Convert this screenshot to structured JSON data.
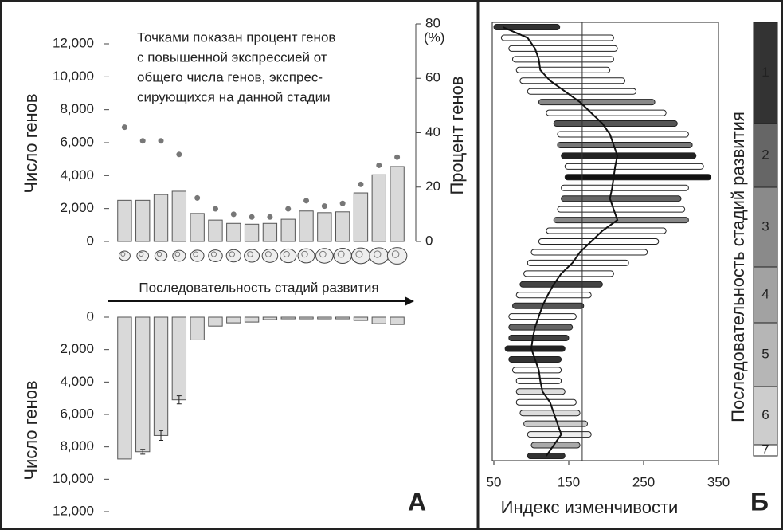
{
  "chart_data": [
    {
      "type": "bar_dot",
      "annotation": [
        "Точками показан процент генов",
        "с повышенной экспрессией от",
        "общего числа генов, экспрес-",
        "сирующихся на данной стадии"
      ],
      "ylabel": "Число генов",
      "y2label": "Процент генов",
      "y2unit": "(%)",
      "xlabel": "Последовательность стадий развития",
      "categories": [
        null,
        null,
        null,
        null,
        null,
        null,
        null,
        null,
        null,
        null,
        null,
        null,
        null,
        null,
        null,
        null
      ],
      "ylim": [
        0,
        12000
      ],
      "yticks": [
        0,
        {
          "value": 2000,
          "label": "2,000"
        },
        {
          "value": 4000,
          "label": "4,000"
        },
        {
          "value": 6000,
          "label": "6,000"
        },
        {
          "value": 8000,
          "label": "8,000"
        },
        {
          "value": 10000,
          "label": "10,000"
        },
        {
          "value": 12000,
          "label": "12,000"
        }
      ],
      "y2lim": [
        0,
        80
      ],
      "y2ticks": [
        0,
        20,
        40,
        60,
        80
      ],
      "series": [
        {
          "color": "#d9d9d9",
          "values": [
            2500,
            2500,
            2850,
            3050,
            1700,
            1300,
            1100,
            1050,
            1100,
            1350,
            1850,
            1750,
            1800,
            2950,
            4050,
            4550
          ]
        },
        {
          "color": "#777777",
          "axis": "y2",
          "values": [
            42,
            37,
            37,
            32,
            16,
            12,
            10,
            9,
            9,
            12,
            15,
            13,
            14,
            21,
            28,
            31
          ]
        }
      ]
    },
    {
      "type": "bar_down",
      "ylabel": "Число генов",
      "panel_label": "А",
      "y_inverted": true,
      "categories": [
        null,
        null,
        null,
        null,
        null,
        null,
        null,
        null,
        null,
        null,
        null,
        null,
        null,
        null,
        null,
        null
      ],
      "ylim": [
        0,
        12000
      ],
      "yticks": [
        0,
        {
          "value": 2000,
          "label": "2,000"
        },
        {
          "value": 4000,
          "label": "4,000"
        },
        {
          "value": 6000,
          "label": "6,000"
        },
        {
          "value": 8000,
          "label": "8,000"
        },
        {
          "value": 10000,
          "label": "10,000"
        },
        {
          "value": 12000,
          "label": "12,000"
        }
      ],
      "color": "#d9d9d9",
      "values": [
        8750,
        8300,
        7300,
        5100,
        1400,
        550,
        350,
        300,
        150,
        100,
        100,
        100,
        100,
        200,
        400,
        450
      ],
      "errors": [
        null,
        150,
        300,
        250,
        null,
        null,
        null,
        null,
        null,
        null,
        null,
        null,
        null,
        null,
        null,
        null
      ]
    },
    {
      "type": "range",
      "xlabel": "Индекс изменчивости",
      "ylabel": "Последовательность стадий развития",
      "panel_label": "Б",
      "xlim": [
        50,
        350
      ],
      "xticks": [
        50,
        150,
        250,
        350
      ],
      "reference_line": 168,
      "lows": [
        50,
        60,
        70,
        75,
        80,
        85,
        95,
        110,
        120,
        130,
        135,
        135,
        140,
        145,
        145,
        140,
        140,
        135,
        130,
        120,
        110,
        100,
        95,
        90,
        85,
        80,
        75,
        70,
        70,
        70,
        65,
        70,
        75,
        80,
        80,
        80,
        85,
        90,
        95,
        100,
        95
      ],
      "highs": [
        138,
        210,
        215,
        210,
        205,
        225,
        240,
        265,
        280,
        295,
        310,
        315,
        320,
        330,
        340,
        310,
        300,
        305,
        310,
        280,
        270,
        255,
        230,
        210,
        195,
        180,
        170,
        160,
        155,
        150,
        145,
        140,
        140,
        140,
        145,
        160,
        165,
        175,
        180,
        165,
        145
      ],
      "medians": [
        62,
        95,
        105,
        110,
        112,
        125,
        145,
        165,
        180,
        195,
        205,
        210,
        215,
        212,
        210,
        208,
        205,
        210,
        215,
        195,
        180,
        165,
        155,
        140,
        130,
        122,
        115,
        110,
        105,
        102,
        100,
        105,
        110,
        112,
        115,
        125,
        130,
        135,
        140,
        130,
        120
      ],
      "colors": [
        "#333",
        "#fff",
        "#fff",
        "#fff",
        "#fff",
        "#fff",
        "#fff",
        "#888",
        "#fff",
        "#555",
        "#fff",
        "#777",
        "#222",
        "#fff",
        "#111",
        "#fff",
        "#666",
        "#fff",
        "#888",
        "#fff",
        "#fff",
        "#fff",
        "#fff",
        "#fff",
        "#444",
        "#fff",
        "#555",
        "#fff",
        "#666",
        "#444",
        "#222",
        "#333",
        "#fff",
        "#fff",
        "#ddd",
        "#fff",
        "#ddd",
        "#ccc",
        "#eee",
        "#aaa",
        "#333"
      ],
      "stages": [
        {
          "label": "1",
          "color": "#333333"
        },
        {
          "label": "2",
          "color": "#666666"
        },
        {
          "label": "3",
          "color": "#8a8a8a"
        },
        {
          "label": "4",
          "color": "#a2a2a2"
        },
        {
          "label": "5",
          "color": "#b6b6b6"
        },
        {
          "label": "6",
          "color": "#cdcdcd"
        },
        {
          "label": "7",
          "color": "#ffffff"
        }
      ]
    }
  ]
}
